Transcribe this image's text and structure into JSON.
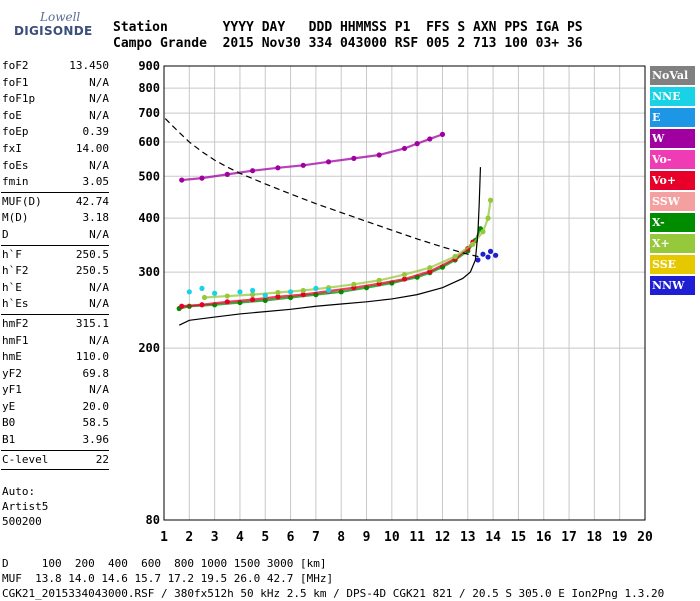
{
  "logo": {
    "line1": "Lowell",
    "line2": "DIGISONDE"
  },
  "header": {
    "line1": "Station       YYYY DAY   DDD HHMMSS P1  FFS S AXN PPS IGA PS",
    "line2": "Campo Grande  2015 Nov30 334 043000 RSF 005 2 713 100 03+ 36"
  },
  "params": {
    "group1": [
      {
        "k": "foF2",
        "v": "13.450"
      },
      {
        "k": "foF1",
        "v": "N/A"
      },
      {
        "k": "foF1p",
        "v": "N/A"
      },
      {
        "k": "foE",
        "v": "N/A"
      },
      {
        "k": "foEp",
        "v": "0.39"
      },
      {
        "k": "fxI",
        "v": "14.00"
      },
      {
        "k": "foEs",
        "v": "N/A"
      },
      {
        "k": "fmin",
        "v": "3.05"
      }
    ],
    "group2": [
      {
        "k": "MUF(D)",
        "v": "42.74"
      },
      {
        "k": "M(D)",
        "v": "3.18"
      },
      {
        "k": "D",
        "v": "N/A"
      }
    ],
    "group3": [
      {
        "k": "h`F",
        "v": "250.5"
      },
      {
        "k": "h`F2",
        "v": "250.5"
      },
      {
        "k": "h`E",
        "v": "N/A"
      },
      {
        "k": "h`Es",
        "v": "N/A"
      }
    ],
    "group4": [
      {
        "k": "hmF2",
        "v": "315.1"
      },
      {
        "k": "hmF1",
        "v": "N/A"
      },
      {
        "k": "hmE",
        "v": "110.0"
      },
      {
        "k": "yF2",
        "v": "69.8"
      },
      {
        "k": "yF1",
        "v": "N/A"
      },
      {
        "k": "yE",
        "v": "20.0"
      },
      {
        "k": "B0",
        "v": "58.5"
      },
      {
        "k": "B1",
        "v": "3.96"
      }
    ],
    "group5": [
      {
        "k": "C-level",
        "v": "22"
      }
    ]
  },
  "auto": {
    "line1": "Auto:",
    "line2": "Artist5",
    "line3": "500200"
  },
  "footer": {
    "line1": "D     100  200  400  600  800 1000 1500 3000 [km]",
    "line2": "MUF  13.8 14.0 14.6 15.7 17.2 19.5 26.0 42.7 [MHz]",
    "line3": "CGK21_2015334043000.RSF / 380fx512h 50 kHz 2.5 km / DPS-4D CGK21 821 / 20.5 S 305.0 E Ion2Png 1.3.20"
  },
  "legend": [
    {
      "label": "NoVal",
      "color": "#808080"
    },
    {
      "label": "NNE",
      "color": "#19d2e6"
    },
    {
      "label": "E",
      "color": "#1e96e6"
    },
    {
      "label": "W",
      "color": "#a000a0"
    },
    {
      "label": "Vo-",
      "color": "#f03cb4"
    },
    {
      "label": "Vo+",
      "color": "#e6002a"
    },
    {
      "label": "SSW",
      "color": "#f5a0a0"
    },
    {
      "label": "X-",
      "color": "#008c00"
    },
    {
      "label": "X+",
      "color": "#96c83c"
    },
    {
      "label": "SSE",
      "color": "#e6c800"
    },
    {
      "label": "NNW",
      "color": "#1e1ed2"
    }
  ],
  "chart_data": {
    "type": "scatter",
    "title": "",
    "xlabel": "",
    "ylabel": "",
    "xlim": [
      1,
      20
    ],
    "ylim": [
      80,
      900
    ],
    "y_scale": "log",
    "grid": true,
    "x_ticks": [
      "1",
      "2",
      "3",
      "4",
      "5",
      "6",
      "7",
      "8",
      "9",
      "10",
      "11",
      "12",
      "13",
      "14",
      "15",
      "16",
      "17",
      "18",
      "19",
      "20"
    ],
    "y_ticks": [
      {
        "v": 80,
        "label": "80"
      },
      {
        "v": 200,
        "label": "200"
      },
      {
        "v": 300,
        "label": "300"
      },
      {
        "v": 400,
        "label": "400"
      },
      {
        "v": 500,
        "label": "500"
      },
      {
        "v": 600,
        "label": "600"
      },
      {
        "v": 700,
        "label": "700"
      },
      {
        "v": 800,
        "label": "800"
      },
      {
        "v": 900,
        "label": "900"
      }
    ],
    "series": [
      {
        "name": "X-",
        "role": "o-trace",
        "color": "#008c00",
        "points": [
          [
            1.6,
            247
          ],
          [
            2,
            250
          ],
          [
            3,
            252
          ],
          [
            4,
            255
          ],
          [
            5,
            258
          ],
          [
            6,
            262
          ],
          [
            7,
            266
          ],
          [
            8,
            270
          ],
          [
            9,
            276
          ],
          [
            10,
            283
          ],
          [
            11,
            292
          ],
          [
            11.5,
            299
          ],
          [
            12,
            308
          ],
          [
            12.5,
            320
          ],
          [
            13,
            336
          ],
          [
            13.3,
            355
          ],
          [
            13.5,
            378
          ]
        ]
      },
      {
        "name": "Vo+",
        "role": "o-trace",
        "color": "#e6002a",
        "points": [
          [
            1.7,
            250
          ],
          [
            2.5,
            252
          ],
          [
            3.5,
            256
          ],
          [
            4.5,
            259
          ],
          [
            5.5,
            263
          ],
          [
            6.5,
            266
          ],
          [
            7.5,
            271
          ],
          [
            8.5,
            276
          ],
          [
            9.5,
            282
          ],
          [
            10.5,
            289
          ],
          [
            11.5,
            301
          ],
          [
            12.5,
            322
          ],
          [
            13,
            340
          ],
          [
            13.2,
            352
          ]
        ]
      },
      {
        "name": "X+",
        "role": "x-trace",
        "color": "#96c83c",
        "points": [
          [
            2.6,
            262
          ],
          [
            3.5,
            264
          ],
          [
            4.5,
            266
          ],
          [
            5.5,
            269
          ],
          [
            6.5,
            272
          ],
          [
            7.5,
            276
          ],
          [
            8.5,
            281
          ],
          [
            9.5,
            287
          ],
          [
            10.5,
            296
          ],
          [
            11.5,
            307
          ],
          [
            12.5,
            326
          ],
          [
            13.2,
            348
          ],
          [
            13.6,
            372
          ],
          [
            13.8,
            400
          ],
          [
            13.9,
            440
          ]
        ]
      },
      {
        "name": "W",
        "role": "secondary-trace",
        "color": "#a000a0",
        "points": [
          [
            1.7,
            490
          ],
          [
            2.5,
            495
          ],
          [
            3.5,
            505
          ],
          [
            4.5,
            515
          ],
          [
            5.5,
            523
          ],
          [
            6.5,
            530
          ],
          [
            7.5,
            540
          ],
          [
            8.5,
            550
          ],
          [
            9.5,
            560
          ],
          [
            10.5,
            580
          ],
          [
            11,
            595
          ],
          [
            11.5,
            610
          ],
          [
            12,
            625
          ]
        ]
      },
      {
        "name": "NNE",
        "role": "spread",
        "color": "#19d2e6",
        "points": [
          [
            2,
            270
          ],
          [
            2.5,
            275
          ],
          [
            3,
            268
          ],
          [
            4,
            270
          ],
          [
            4.5,
            272
          ],
          [
            5,
            265
          ],
          [
            6,
            270
          ],
          [
            7,
            275
          ],
          [
            7.5,
            272
          ]
        ]
      },
      {
        "name": "NNW",
        "role": "x-cusp",
        "color": "#1e1ed2",
        "points": [
          [
            13.4,
            320
          ],
          [
            13.6,
            330
          ],
          [
            13.8,
            325
          ],
          [
            13.9,
            335
          ],
          [
            14.1,
            328
          ]
        ]
      }
    ],
    "lines": [
      {
        "name": "true-height profile",
        "style": "solid",
        "color": "#000000",
        "points": [
          [
            1.6,
            226
          ],
          [
            2,
            232
          ],
          [
            3,
            236
          ],
          [
            4,
            240
          ],
          [
            5,
            243
          ],
          [
            6,
            246
          ],
          [
            7,
            250
          ],
          [
            8,
            253
          ],
          [
            9,
            256
          ],
          [
            10,
            260
          ],
          [
            11,
            266
          ],
          [
            12,
            276
          ],
          [
            12.8,
            290
          ],
          [
            13.1,
            300
          ],
          [
            13.3,
            320
          ],
          [
            13.4,
            370
          ],
          [
            13.45,
            430
          ],
          [
            13.5,
            525
          ]
        ]
      },
      {
        "name": "MUF curve",
        "style": "dashed",
        "color": "#000000",
        "points": [
          [
            1.05,
            680
          ],
          [
            1.5,
            640
          ],
          [
            2,
            600
          ],
          [
            2.5,
            570
          ],
          [
            3,
            545
          ],
          [
            3.5,
            525
          ],
          [
            4,
            508
          ],
          [
            5,
            480
          ],
          [
            6,
            455
          ],
          [
            7,
            432
          ],
          [
            8,
            412
          ],
          [
            9,
            393
          ],
          [
            10,
            375
          ],
          [
            11,
            358
          ],
          [
            12,
            343
          ],
          [
            13,
            330
          ],
          [
            13.5,
            325
          ]
        ]
      }
    ]
  }
}
